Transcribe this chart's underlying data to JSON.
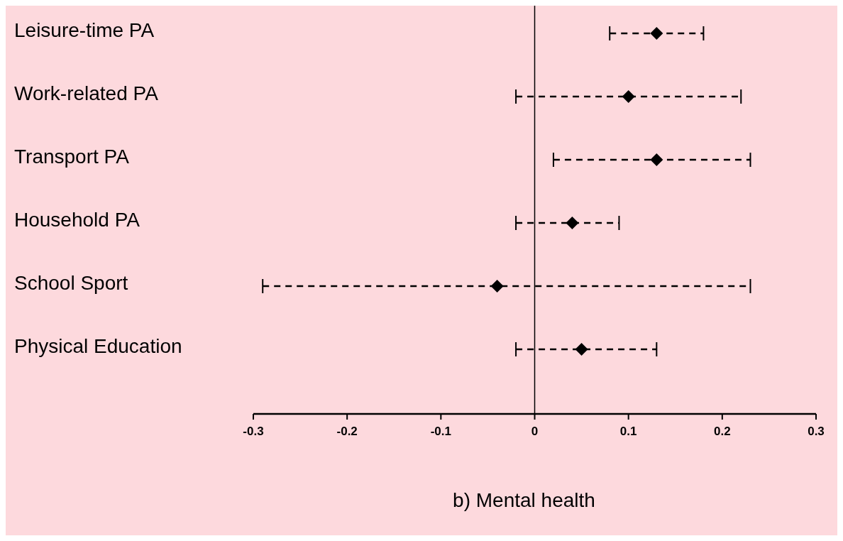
{
  "chart_data": {
    "type": "scatter",
    "orientation": "horizontal",
    "title": "b) Mental health",
    "categories": [
      "Leisure-time PA",
      "Work-related PA",
      "Transport PA",
      "Household PA",
      "School Sport",
      "Physical Education"
    ],
    "values": [
      0.13,
      0.1,
      0.13,
      0.04,
      -0.04,
      0.05
    ],
    "errors": [
      [
        0.08,
        0.18
      ],
      [
        -0.02,
        0.22
      ],
      [
        0.02,
        0.23
      ],
      [
        -0.02,
        0.09
      ],
      [
        -0.29,
        0.23
      ],
      [
        -0.02,
        0.13
      ]
    ],
    "color": "#000000",
    "marker": "diamond",
    "line_style": "dashed",
    "xlim": [
      -0.3,
      0.3
    ],
    "xticks": [
      -0.3,
      -0.2,
      -0.1,
      0,
      0.1,
      0.2,
      0.3
    ],
    "ref_lines": [
      {
        "axis": "x",
        "value": 0,
        "color": "#000000"
      }
    ],
    "grid": false
  }
}
